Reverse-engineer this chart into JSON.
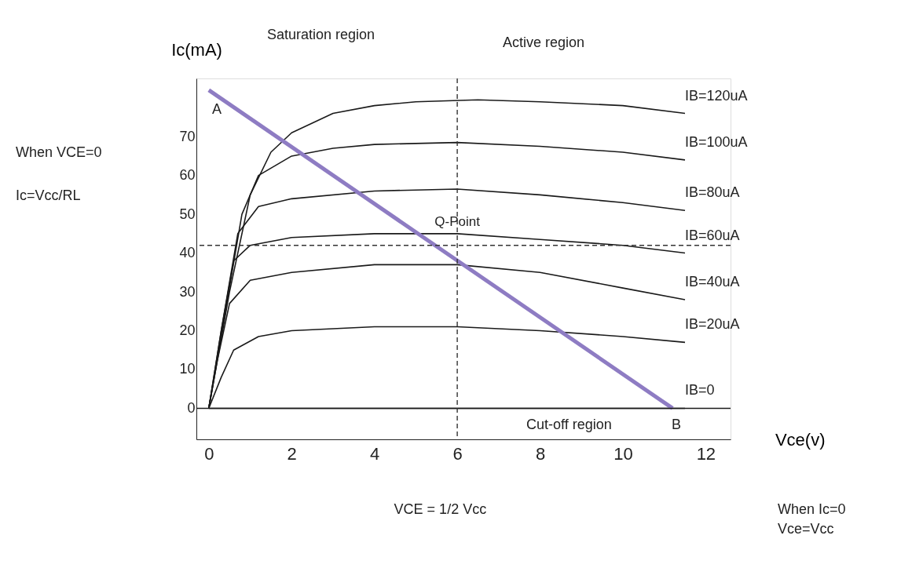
{
  "chart_data": {
    "type": "line",
    "xlabel": "Vce(v)",
    "ylabel": "Ic(mA)",
    "xlim": [
      -0.3,
      12.6
    ],
    "ylim": [
      -8,
      85
    ],
    "xticks": [
      0,
      2,
      4,
      6,
      8,
      10,
      12
    ],
    "yticks": [
      0,
      10,
      20,
      30,
      40,
      50,
      60,
      70
    ],
    "grid": false,
    "legend": false,
    "marker": "none",
    "line_style": "solid",
    "series": [
      {
        "name": "IB=120uA",
        "color": "#1a1a1a",
        "x": [
          0,
          0.5,
          1,
          1.5,
          2,
          3,
          4,
          5,
          6.5,
          8,
          10,
          11.5
        ],
        "values": [
          0,
          30,
          55,
          66,
          71,
          76,
          78,
          79,
          79.5,
          79,
          78,
          76
        ]
      },
      {
        "name": "IB=100uA",
        "color": "#1a1a1a",
        "x": [
          0,
          0.4,
          0.8,
          1.2,
          2,
          3,
          4,
          6,
          8,
          10,
          11.5
        ],
        "values": [
          0,
          25,
          50,
          60,
          65,
          67,
          68,
          68.5,
          67.5,
          66,
          64
        ]
      },
      {
        "name": "IB=80uA",
        "color": "#1a1a1a",
        "x": [
          0,
          0.3,
          0.7,
          1.2,
          2,
          4,
          6,
          8,
          10,
          11.5
        ],
        "values": [
          0,
          20,
          45,
          52,
          54,
          56,
          56.5,
          55,
          53,
          51
        ]
      },
      {
        "name": "IB=60uA",
        "color": "#1a1a1a",
        "x": [
          0,
          0.3,
          0.6,
          1,
          2,
          4,
          6,
          8,
          10,
          11.5
        ],
        "values": [
          0,
          20,
          38,
          42,
          44,
          45,
          45,
          43.5,
          42,
          40
        ]
      },
      {
        "name": "IB=40uA",
        "color": "#1a1a1a",
        "x": [
          0,
          0.2,
          0.5,
          1,
          2,
          4,
          6,
          8,
          10,
          11.5
        ],
        "values": [
          0,
          12,
          27,
          33,
          35,
          37,
          37,
          35,
          31,
          28
        ]
      },
      {
        "name": "IB=20uA",
        "color": "#1a1a1a",
        "x": [
          0,
          0.3,
          0.6,
          1.2,
          2,
          4,
          6,
          8,
          10,
          11.5
        ],
        "values": [
          0,
          8,
          15,
          18.5,
          20,
          21,
          21,
          20,
          18.5,
          17
        ]
      },
      {
        "name": "IB=0",
        "color": "#1a1a1a",
        "x": [
          0,
          11.5
        ],
        "values": [
          0,
          0
        ]
      },
      {
        "color": "#8e7cc3",
        "x": [
          0,
          11.2
        ],
        "values": [
          82,
          0
        ]
      }
    ],
    "ref_lines": [
      {
        "axis": "y",
        "value": 0,
        "line_style": "solid",
        "color": "#1a1a1a"
      },
      {
        "axis": "y",
        "value": 42,
        "line_style": "dashed",
        "color": "#333333"
      },
      {
        "axis": "x",
        "value": 6,
        "line_style": "dashed",
        "color": "#333333"
      }
    ],
    "annotations": [
      "Saturation region",
      "Active region",
      "A",
      {
        "text": "Q-Point",
        "x": 6,
        "y": 48
      },
      "Cut-off region",
      "B",
      "When VCE=0",
      "Ic=Vcc/RL",
      "VCE = 1/2 Vcc",
      "When Ic=0",
      "Vce=Vcc"
    ]
  }
}
